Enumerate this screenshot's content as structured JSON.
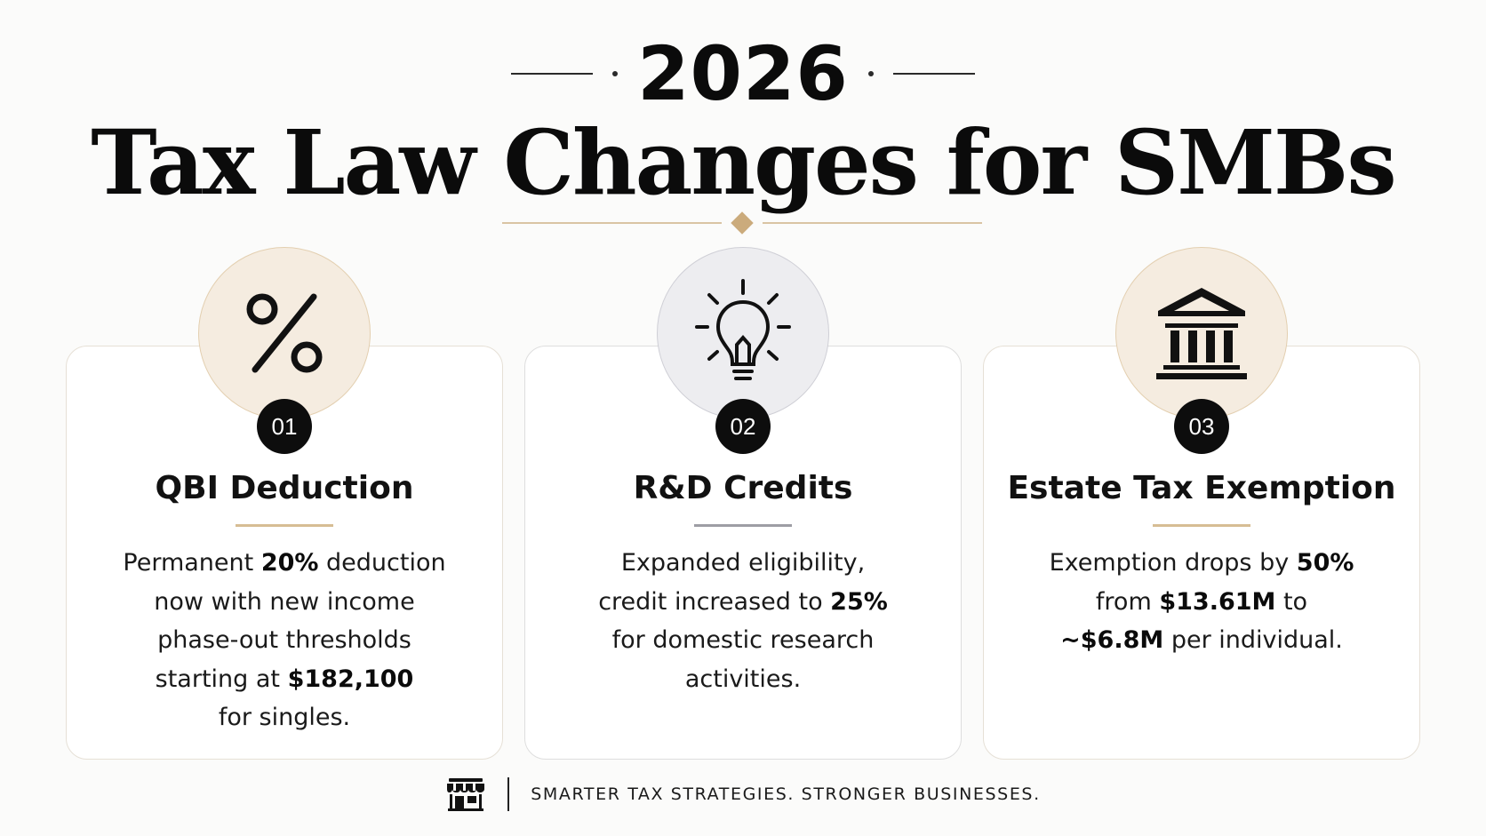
{
  "header": {
    "year": "2026",
    "title": "Tax Law Changes for SMBs"
  },
  "cards": [
    {
      "number": "01",
      "icon": "percent-icon",
      "title": "QBI Deduction",
      "body_lines": [
        [
          "Permanent ",
          "20%",
          " deduction"
        ],
        [
          "now with new income"
        ],
        [
          "phase-out thresholds"
        ],
        [
          "starting at ",
          "$182,100"
        ],
        [
          "for singles."
        ]
      ]
    },
    {
      "number": "02",
      "icon": "lightbulb-icon",
      "title": "R&D Credits",
      "body_lines": [
        [
          "Expanded eligibility,"
        ],
        [
          "credit increased to ",
          "25%"
        ],
        [
          "for domestic research"
        ],
        [
          "activities."
        ]
      ]
    },
    {
      "number": "03",
      "icon": "bank-building-icon",
      "title": "Estate Tax Exemption",
      "body_lines": [
        [
          "Exemption drops by ",
          "50%"
        ],
        [
          "from ",
          "$13.61M",
          " to"
        ],
        [
          "~$6.8M",
          " per individual."
        ]
      ]
    }
  ],
  "footer": {
    "icon": "storefront-icon",
    "tagline": "SMARTER TAX STRATEGIES. STRONGER BUSINESSES."
  },
  "colors": {
    "accent_gold": "#cbab7c",
    "card_border": "#e6e0d6",
    "badge": "#0d0d0d"
  }
}
